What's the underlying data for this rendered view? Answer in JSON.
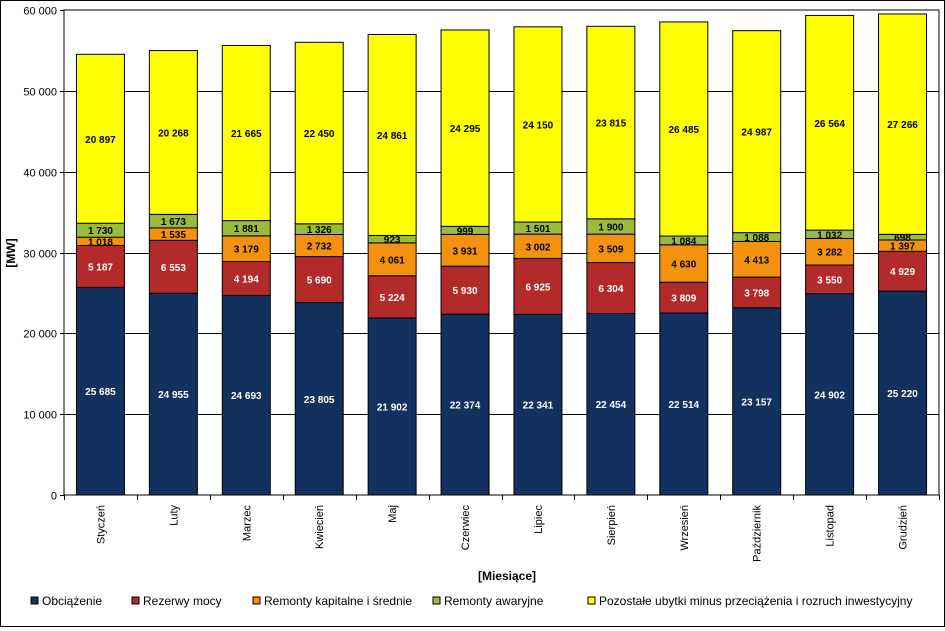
{
  "chart_data": {
    "type": "bar",
    "stacked": true,
    "title": "",
    "xlabel": "[Miesiące]",
    "ylabel": "[MW]",
    "ylim": [
      0,
      60000
    ],
    "yticks": [
      "0",
      "10 000",
      "20 000",
      "30 000",
      "40 000",
      "50 000",
      "60 000"
    ],
    "grid": true,
    "legend_position": "bottom",
    "categories": [
      "Styczeń",
      "Luty",
      "Marzec",
      "Kwiecień",
      "Maj",
      "Czerwiec",
      "Lipiec",
      "Sierpień",
      "Wrzesień",
      "Październik",
      "Listopad",
      "Grudzień"
    ],
    "series": [
      {
        "name": "Obciążenie",
        "color": "#13315f",
        "label_color": "#ffffff",
        "values": [
          25685,
          24955,
          24693,
          23805,
          21902,
          22374,
          22341,
          22454,
          22514,
          23157,
          24902,
          25220
        ],
        "labels": [
          "25 685",
          "24 955",
          "24 693",
          "23 805",
          "21 902",
          "22 374",
          "22 341",
          "22 454",
          "22 514",
          "23 157",
          "24 902",
          "25 220"
        ]
      },
      {
        "name": "Rezerwy mocy",
        "color": "#b22a2a",
        "label_color": "#ffffff",
        "values": [
          5187,
          6553,
          4194,
          5690,
          5224,
          5930,
          6925,
          6304,
          3809,
          3798,
          3550,
          4929
        ],
        "labels": [
          "5 187",
          "6 553",
          "4 194",
          "5 690",
          "5 224",
          "5 930",
          "6 925",
          "6 304",
          "3 809",
          "3 798",
          "3 550",
          "4 929"
        ]
      },
      {
        "name": "Remonty kapitalne i średnie",
        "color": "#f4920f",
        "label_color": "#000000",
        "values": [
          1018,
          1535,
          3179,
          2732,
          4061,
          3931,
          3002,
          3509,
          4630,
          4413,
          3282,
          1397
        ],
        "labels": [
          "1 018",
          "1 535",
          "3 179",
          "2 732",
          "4 061",
          "3 931",
          "3 002",
          "3 509",
          "4 630",
          "4 413",
          "3 282",
          "1 397"
        ]
      },
      {
        "name": "Remonty awaryjne",
        "color": "#9bbb3a",
        "label_color": "#000000",
        "values": [
          1730,
          1673,
          1881,
          1326,
          923,
          999,
          1501,
          1900,
          1084,
          1088,
          1032,
          698
        ],
        "labels": [
          "1 730",
          "1 673",
          "1 881",
          "1 326",
          "923",
          "999",
          "1 501",
          "1 900",
          "1 084",
          "1 088",
          "1 032",
          "698"
        ]
      },
      {
        "name": "Pozostałe ubytki minus przeciążenia i rozruch inwestycyjny",
        "color": "#ffff00",
        "label_color": "#000000",
        "values": [
          20897,
          20268,
          21665,
          22450,
          24861,
          24295,
          24150,
          23815,
          26485,
          24987,
          26564,
          27266
        ],
        "labels": [
          "20 897",
          "20 268",
          "21 665",
          "22 450",
          "24 861",
          "24 295",
          "24 150",
          "23 815",
          "26 485",
          "24 987",
          "26 564",
          "27 266"
        ]
      }
    ]
  }
}
